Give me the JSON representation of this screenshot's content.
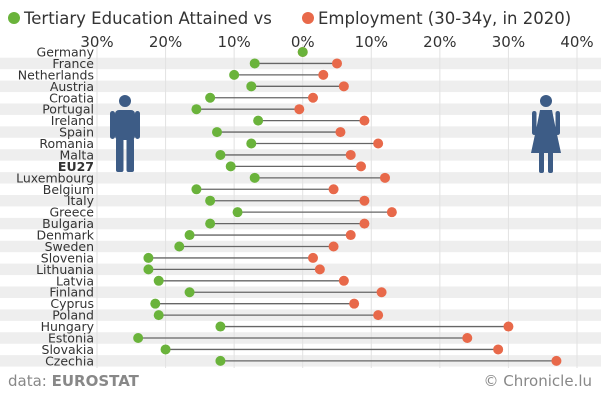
{
  "colors": {
    "tertiary": "#6ab33b",
    "employment": "#e8694a",
    "male": "#3d5c86",
    "female": "#3d5c86",
    "band": "#eeeeee",
    "connector": "#666666"
  },
  "legend": {
    "tertiary_label": "Tertiary Education Attained vs",
    "employment_label": "Employment (30-34y, in 2020)"
  },
  "footer": {
    "source_prefix": "data: ",
    "source_name": "EUROSTAT",
    "credit": "© Chronicle.lu"
  },
  "icons": {
    "left": "male-figure-icon",
    "right": "female-figure-icon"
  },
  "chart_data": {
    "type": "dumbbell",
    "x_axis": {
      "min": -30,
      "max": 40,
      "ticks": [
        -30,
        -20,
        -10,
        0,
        10,
        20,
        30,
        40
      ],
      "tick_labels": [
        "30%",
        "20%",
        "10%",
        "0%",
        "10%",
        "20%",
        "30%",
        "40%"
      ]
    },
    "highlight": "EU27",
    "categories": [
      "Germany",
      "France",
      "Netherlands",
      "Austria",
      "Croatia",
      "Portugal",
      "Ireland",
      "Spain",
      "Romania",
      "Malta",
      "EU27",
      "Luxembourg",
      "Belgium",
      "Italy",
      "Greece",
      "Bulgaria",
      "Denmark",
      "Sweden",
      "Slovenia",
      "Lithuania",
      "Latvia",
      "Finland",
      "Cyprus",
      "Poland",
      "Hungary",
      "Estonia",
      "Slovakia",
      "Czechia"
    ],
    "series": [
      {
        "name": "Tertiary Education Attained",
        "values": [
          0,
          -7,
          -10,
          -7.5,
          -13.5,
          -15.5,
          -6.5,
          -12.5,
          -7.5,
          -12,
          -10.5,
          -7,
          -15.5,
          -13.5,
          -9.5,
          -13.5,
          -16.5,
          -18,
          -22.5,
          -22.5,
          -21,
          -16.5,
          -21.5,
          -21,
          -12,
          -24,
          -20,
          -12
        ]
      },
      {
        "name": "Employment (30-34y, in 2020)",
        "values": [
          0,
          5,
          3,
          6,
          1.5,
          -0.5,
          9,
          5.5,
          11,
          7,
          8.5,
          12,
          4.5,
          9,
          13,
          9,
          7,
          4.5,
          1.5,
          2.5,
          6,
          11.5,
          7.5,
          11,
          30,
          24,
          28.5,
          37
        ]
      }
    ]
  }
}
